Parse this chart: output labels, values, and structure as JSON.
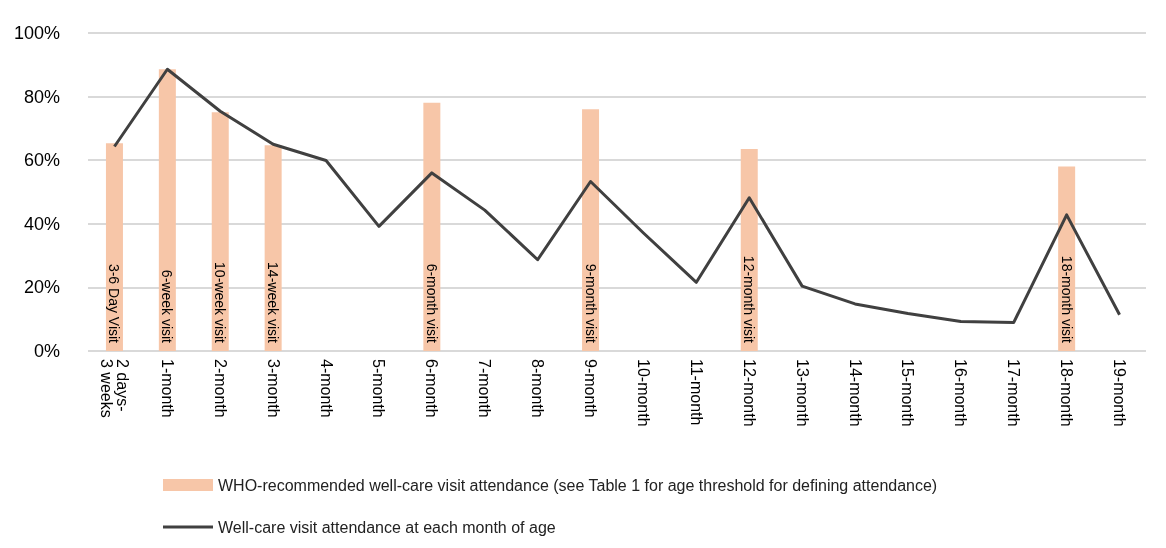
{
  "chart_data": {
    "type": "bar",
    "categories": [
      "2 days-3 weeks",
      "1-month",
      "2-month",
      "3-month",
      "4-month",
      "5-month",
      "6-month",
      "7-month",
      "8-month",
      "9-month",
      "10-month",
      "11-month",
      "12-month",
      "13-month",
      "14-month",
      "15-month",
      "16-month",
      "17-month",
      "18-month",
      "19-month"
    ],
    "series": [
      {
        "name": "WHO-recommended well-care visit attendance (see Table 1 for age threshold for defining attendance)",
        "color": "#f7c6a8",
        "values": [
          65.3,
          88.6,
          75.1,
          64.7,
          null,
          null,
          78.1,
          null,
          null,
          76,
          null,
          null,
          63.5,
          null,
          null,
          null,
          null,
          null,
          58,
          null
        ]
      },
      {
        "name": "Well-care visit attendance at each month of age",
        "type": "line",
        "color": "#404040",
        "values": [
          64.3,
          88.6,
          75.4,
          65,
          59.9,
          39.2,
          56,
          44.3,
          28.7,
          53.3,
          37.1,
          21.6,
          48.2,
          20.4,
          14.8,
          11.8,
          9.3,
          9,
          42.8,
          11.4
        ]
      }
    ],
    "annotations": [
      "3-6 Day Visit",
      "6-week visit",
      "10-week visit",
      "14-week visit",
      "6-month visit",
      "9-month visit",
      "12-month visit",
      "18-month visit"
    ],
    "ylim": [
      0,
      100
    ],
    "yticks": [
      {
        "value": 0,
        "label": "0%"
      },
      {
        "value": 20,
        "label": "20%"
      },
      {
        "value": 40,
        "label": "40%"
      },
      {
        "value": 60,
        "label": "60%"
      },
      {
        "value": 80,
        "label": "80%"
      },
      {
        "value": 100,
        "label": "100%"
      }
    ],
    "grid": "y",
    "legend": "bottom",
    "marker": "none",
    "line_style": "solid"
  }
}
